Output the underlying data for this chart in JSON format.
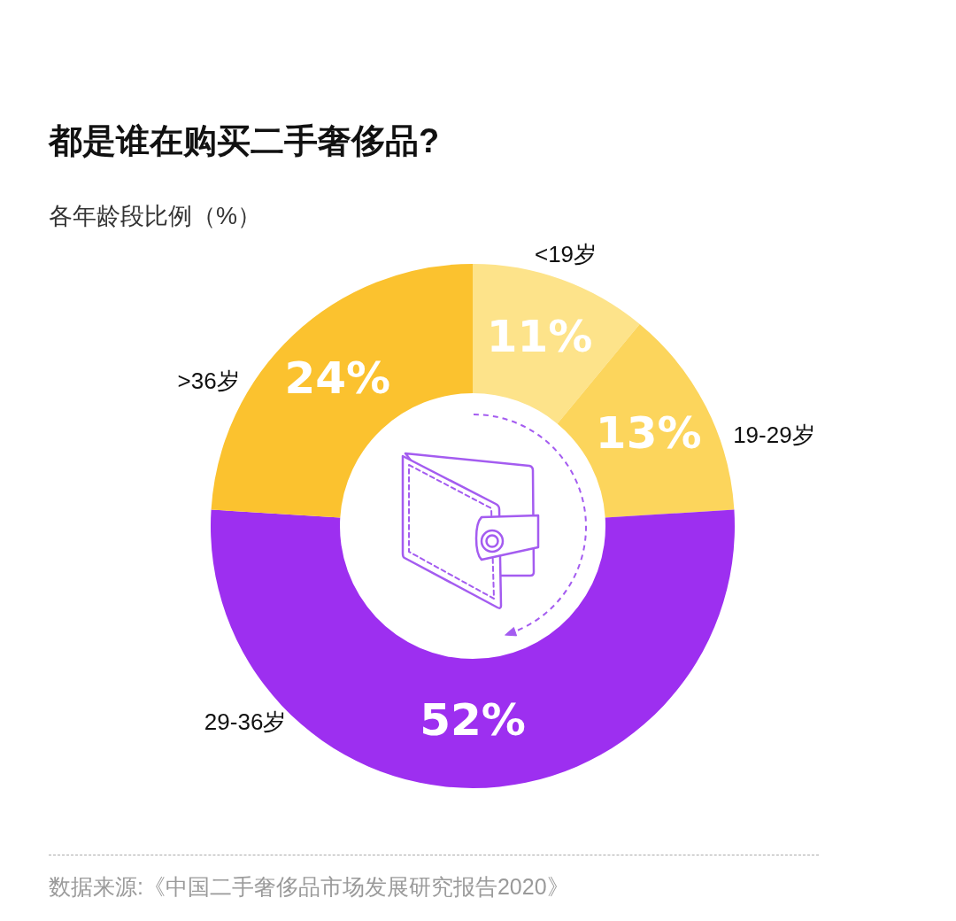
{
  "chart_data": {
    "type": "donut",
    "title": "都是谁在购买二手奢侈品?",
    "subtitle": "各年龄段比例（%）",
    "categories": [
      "<19岁",
      "19-29岁",
      "29-36岁",
      ">36岁"
    ],
    "values": [
      11,
      13,
      52,
      24
    ],
    "colors": [
      "#fde38a",
      "#fcd55c",
      "#9d2ff0",
      "#fbc22f"
    ],
    "value_labels": [
      "11%",
      "13%",
      "52%",
      "24%"
    ],
    "annotations": [
      "数据来源:《中国二手奢侈品市场发展研究报告2020》"
    ]
  }
}
